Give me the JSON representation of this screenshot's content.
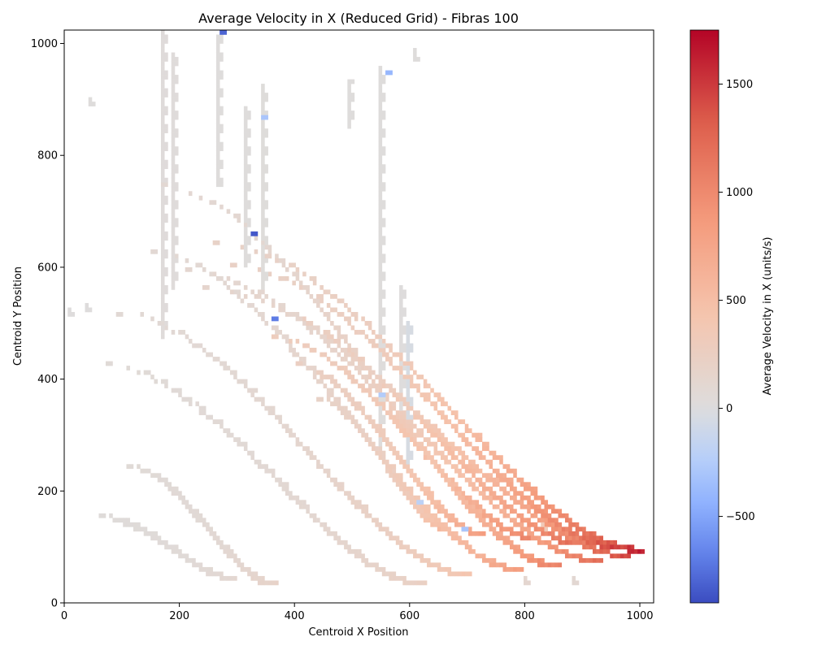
{
  "chart_data": {
    "type": "heatmap",
    "title": "Average Velocity in X (Reduced Grid) - Fibras 100",
    "xlabel": "Centroid X Position",
    "ylabel": "Centroid Y Position",
    "xlim": [
      0,
      1024
    ],
    "ylim": [
      0,
      1024
    ],
    "x_ticks": [
      "0",
      "200",
      "400",
      "600",
      "800",
      "1000"
    ],
    "y_ticks": [
      "0",
      "200",
      "400",
      "600",
      "800",
      "1000"
    ],
    "grid": false,
    "colorbar": {
      "label": "Average Velocity in X (units/s)",
      "range": [
        -900,
        1750
      ],
      "tick_values": [
        -500,
        0,
        500,
        1000,
        1500
      ],
      "tick_labels": [
        "−500",
        "0",
        "500",
        "1000",
        "1500"
      ],
      "colormap": "coolwarm",
      "center_value": 0
    },
    "arc_family": {
      "description_values": "fiber streak bands in data units",
      "bands": [
        {
          "x_start": 70,
          "y_start": 420,
          "x_end": 620,
          "y_end": 30,
          "v_start": 60,
          "v_end": 250
        },
        {
          "x_start": 90,
          "y_start": 515,
          "x_end": 700,
          "y_end": 45,
          "v_start": 80,
          "v_end": 450
        },
        {
          "x_start": 150,
          "y_start": 620,
          "x_end": 790,
          "y_end": 55,
          "v_start": 90,
          "v_end": 900
        },
        {
          "x_start": 170,
          "y_start": 740,
          "x_end": 860,
          "y_end": 60,
          "v_start": 100,
          "v_end": 1150
        },
        {
          "x_start": 210,
          "y_start": 590,
          "x_end": 930,
          "y_end": 70,
          "v_start": 120,
          "v_end": 1300
        },
        {
          "x_start": 240,
          "y_start": 560,
          "x_end": 980,
          "y_end": 80,
          "v_start": 150,
          "v_end": 1550
        },
        {
          "x_start": 260,
          "y_start": 640,
          "x_end": 1000,
          "y_end": 90,
          "v_start": 200,
          "v_end": 1700
        },
        {
          "x_start": 290,
          "y_start": 600,
          "x_end": 960,
          "y_end": 95,
          "v_start": 220,
          "v_end": 1600
        },
        {
          "x_start": 320,
          "y_start": 530,
          "x_end": 900,
          "y_end": 100,
          "v_start": 250,
          "v_end": 1400
        },
        {
          "x_start": 360,
          "y_start": 470,
          "x_end": 820,
          "y_end": 110,
          "v_start": 300,
          "v_end": 1200
        },
        {
          "x_start": 400,
          "y_start": 420,
          "x_end": 720,
          "y_end": 120,
          "v_start": 250,
          "v_end": 900
        },
        {
          "x_start": 440,
          "y_start": 360,
          "x_end": 660,
          "y_end": 130,
          "v_start": 200,
          "v_end": 600
        },
        {
          "x_start": 60,
          "y_start": 150,
          "x_end": 290,
          "y_end": 40,
          "v_start": 40,
          "v_end": 120
        },
        {
          "x_start": 110,
          "y_start": 240,
          "x_end": 360,
          "y_end": 30,
          "v_start": 60,
          "v_end": 200
        }
      ],
      "vertical_streaks": [
        {
          "x": 170,
          "y_bottom": 470,
          "y_top": 1015,
          "v": 30
        },
        {
          "x": 185,
          "y_bottom": 560,
          "y_top": 980,
          "v": 30
        },
        {
          "x": 262,
          "y_bottom": 740,
          "y_top": 1010,
          "v": 20
        },
        {
          "x": 310,
          "y_bottom": 600,
          "y_top": 880,
          "v": 20
        },
        {
          "x": 340,
          "y_bottom": 560,
          "y_top": 920,
          "v": 25
        },
        {
          "x": 490,
          "y_bottom": 850,
          "y_top": 935,
          "v": 20
        },
        {
          "x": 545,
          "y_bottom": 280,
          "y_top": 955,
          "v": 15
        },
        {
          "x": 580,
          "y_bottom": 330,
          "y_top": 565,
          "v": 10
        },
        {
          "x": 595,
          "y_bottom": 250,
          "y_top": 500,
          "v": -40
        },
        {
          "x": 605,
          "y_bottom": 970,
          "y_top": 990,
          "v": 20
        }
      ],
      "blue_spots": [
        {
          "x": 270,
          "y": 1015,
          "v": -800
        },
        {
          "x": 325,
          "y": 655,
          "v": -850
        },
        {
          "x": 360,
          "y": 500,
          "v": -700
        },
        {
          "x": 340,
          "y": 862,
          "v": -300
        },
        {
          "x": 555,
          "y": 940,
          "v": -400
        },
        {
          "x": 545,
          "y": 368,
          "v": -250
        },
        {
          "x": 610,
          "y": 177,
          "v": -200
        },
        {
          "x": 690,
          "y": 130,
          "v": -300
        }
      ],
      "isolated_patches": [
        {
          "x": 35,
          "y": 520,
          "v": 10
        },
        {
          "x": 40,
          "y": 890,
          "v": 20
        },
        {
          "x": 5,
          "y": 510,
          "v": 10
        },
        {
          "x": 800,
          "y": 35,
          "v": 120
        },
        {
          "x": 880,
          "y": 35,
          "v": 100
        },
        {
          "x": 825,
          "y": 130,
          "v": 350
        }
      ]
    }
  }
}
